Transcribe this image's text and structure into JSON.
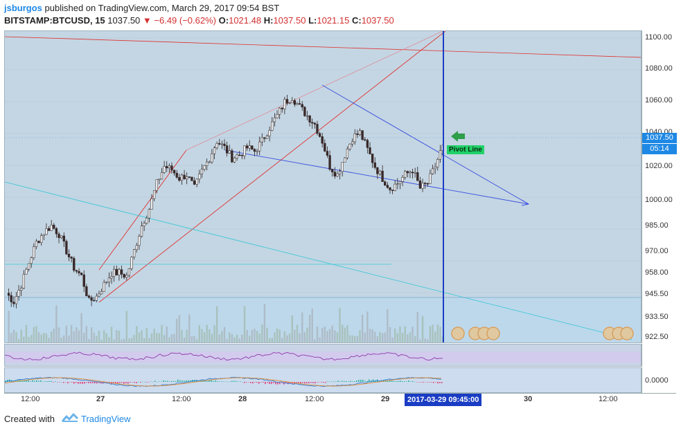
{
  "header": {
    "username": "jsburgos",
    "published": "published on TradingView.com, March 29, 2017 09:54 BST",
    "symbol": "BITSTAMP:BTCUSD, 15",
    "last": "1037.50",
    "change": "▼ −6.49 (−0.62%)",
    "o_label": "O:",
    "o_value": "1021.48",
    "h_label": "H:",
    "h_value": "1037.50",
    "l_label": "L:",
    "l_value": "1021.15",
    "c_label": "C:",
    "c_value": "1037.50"
  },
  "price_axis": {
    "ticks": [
      "1100.00",
      "1080.00",
      "1060.00",
      "1040.00",
      "1020.00",
      "1000.00",
      "985.00",
      "970.00",
      "958.00",
      "945.50",
      "933.50",
      "922.50"
    ],
    "current_price": "1037.50",
    "countdown": "05:14"
  },
  "macd_axis": {
    "zero": "0.0000"
  },
  "time_axis": {
    "labels": [
      "12:00",
      "27",
      "12:00",
      "28",
      "12:00",
      "29",
      "30",
      "12:00"
    ],
    "current_time": "2017-03-29 09:45:00"
  },
  "annotation": {
    "pivot_label": "Pivot Line"
  },
  "footer": {
    "created": "Created with",
    "brand": "TradingView"
  },
  "colors": {
    "background": "#c4d6e3",
    "up_candle": "#f0f0f0",
    "down_candle": "#3a2a2a",
    "trendline_red": "#e03030",
    "trendline_blue": "#3a4ee0",
    "trendline_cyan": "#40c8d8",
    "accent": "#1e88e5"
  },
  "chart_data": {
    "type": "candlestick",
    "x_labels": [
      "12:00",
      "27",
      "12:00",
      "28",
      "12:00",
      "29",
      "30",
      "12:00"
    ],
    "ylim": [
      920,
      1105
    ],
    "close_series": [
      950,
      945,
      955,
      968,
      980,
      986,
      990,
      985,
      975,
      965,
      960,
      945,
      948,
      955,
      962,
      962,
      960,
      975,
      990,
      1000,
      1015,
      1025,
      1023,
      1018,
      1020,
      1012,
      1022,
      1030,
      1040,
      1036,
      1030,
      1032,
      1036,
      1034,
      1040,
      1048,
      1055,
      1063,
      1066,
      1060,
      1055,
      1050,
      1040,
      1025,
      1020,
      1032,
      1042,
      1045,
      1035,
      1025,
      1018,
      1012,
      1015,
      1020,
      1023,
      1012,
      1015,
      1025,
      1037.5
    ]
  }
}
